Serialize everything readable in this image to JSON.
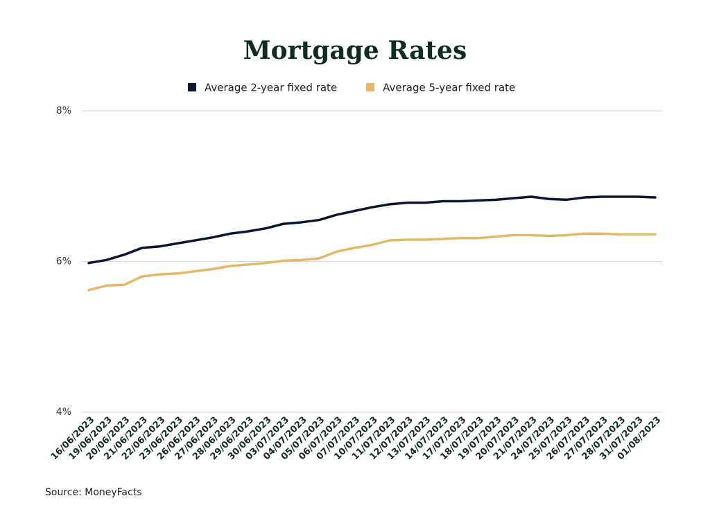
{
  "chart_data": {
    "type": "line",
    "title": "Mortgage Rates",
    "source": "Source: MoneyFacts",
    "categories": [
      "16/06/2023",
      "19/06/2023",
      "20/06/2023",
      "21/06/2023",
      "22/06/2023",
      "23/06/2023",
      "26/06/2023",
      "27/06/2023",
      "28/06/2023",
      "29/06/2023",
      "30/06/2023",
      "03/07/2023",
      "04/07/2023",
      "05/07/2023",
      "06/07/2023",
      "07/07/2023",
      "10/07/2023",
      "11/07/2023",
      "12/07/2023",
      "13/07/2023",
      "14/07/2023",
      "17/07/2023",
      "18/07/2023",
      "19/07/2023",
      "20/07/2023",
      "21/07/2023",
      "24/07/2023",
      "25/07/2023",
      "26/07/2023",
      "27/07/2023",
      "28/07/2023",
      "31/07/2023",
      "01/08/2023"
    ],
    "series": [
      {
        "name": "Average 2-year fixed rate",
        "color": "#0d1533",
        "values": [
          5.98,
          6.02,
          6.09,
          6.18,
          6.2,
          6.24,
          6.28,
          6.32,
          6.37,
          6.4,
          6.44,
          6.5,
          6.52,
          6.55,
          6.62,
          6.67,
          6.72,
          6.76,
          6.78,
          6.78,
          6.8,
          6.8,
          6.81,
          6.82,
          6.84,
          6.86,
          6.83,
          6.82,
          6.85,
          6.86,
          6.86,
          6.86,
          6.85
        ]
      },
      {
        "name": "Average 5-year fixed rate",
        "color": "#e3b86a",
        "values": [
          5.62,
          5.68,
          5.69,
          5.8,
          5.83,
          5.84,
          5.87,
          5.9,
          5.94,
          5.96,
          5.98,
          6.01,
          6.02,
          6.04,
          6.13,
          6.18,
          6.22,
          6.28,
          6.29,
          6.29,
          6.3,
          6.31,
          6.31,
          6.33,
          6.35,
          6.35,
          6.34,
          6.35,
          6.37,
          6.37,
          6.36,
          6.36,
          6.36
        ]
      }
    ],
    "ylim": [
      4,
      8
    ],
    "yticks": [
      {
        "value": 4,
        "label": "4%"
      },
      {
        "value": 6,
        "label": "6%"
      },
      {
        "value": 8,
        "label": "8%"
      }
    ],
    "grid": true
  }
}
